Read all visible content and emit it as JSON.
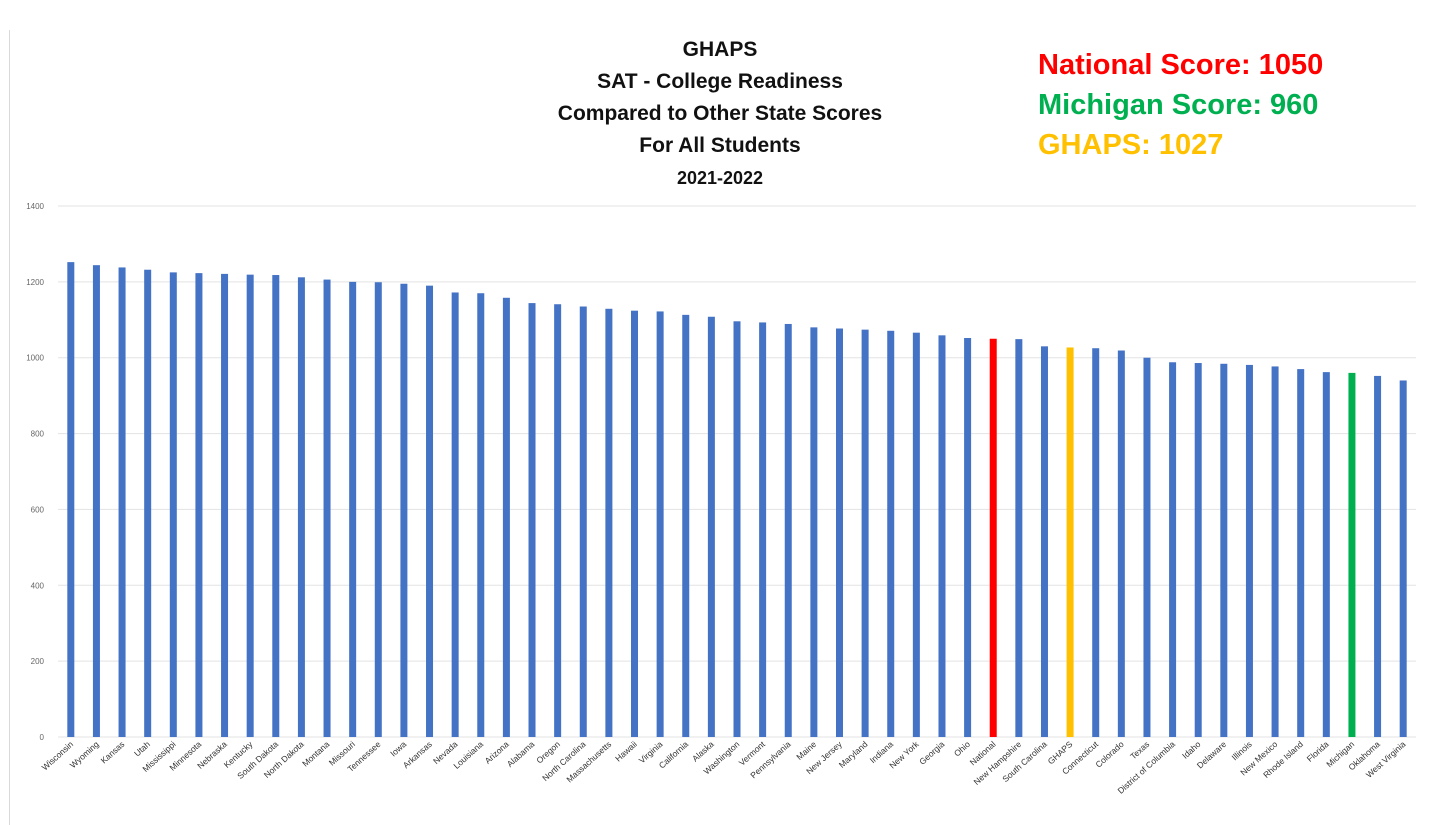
{
  "title_lines": [
    "GHAPS",
    "SAT - College Readiness",
    "Compared to Other State Scores",
    "For All Students",
    "2021-2022"
  ],
  "callouts": {
    "national": "National Score: 1050",
    "michigan": "Michigan Score: 960",
    "ghaps": "GHAPS: 1027"
  },
  "colors": {
    "default_bar": "#4472c4",
    "national": "#ff0000",
    "michigan": "#00b050",
    "ghaps": "#ffc000",
    "grid": "#e3e3e3"
  },
  "chart_data": {
    "type": "bar",
    "title": "GHAPS SAT - College Readiness Compared to Other State Scores For All Students 2021-2022",
    "xlabel": "",
    "ylabel": "",
    "ylim": [
      0,
      1400
    ],
    "yticks": [
      0,
      200,
      400,
      600,
      800,
      1000,
      1200,
      1400
    ],
    "grid": true,
    "categories": [
      "Wisconsin",
      "Wyoming",
      "Kansas",
      "Utah",
      "Mississippi",
      "Minnesota",
      "Nebraska",
      "Kentucky",
      "South Dakota",
      "North Dakota",
      "Montana",
      "Missouri",
      "Tennessee",
      "Iowa",
      "Arkansas",
      "Nevada",
      "Louisiana",
      "Arizona",
      "Alabama",
      "Oregon",
      "North Carolina",
      "Massachusetts",
      "Hawaii",
      "Virginia",
      "California",
      "Alaska",
      "Washington",
      "Vermont",
      "Pennsylvania",
      "Maine",
      "New Jersey",
      "Maryland",
      "Indiana",
      "New York",
      "Georgia",
      "Ohio",
      "National",
      "New Hampshire",
      "South Carolina",
      "GHAPS",
      "Connecticut",
      "Colorado",
      "Texas",
      "District of Columbia",
      "Idaho",
      "Delaware",
      "Illinois",
      "New Mexico",
      "Rhode Island",
      "Florida",
      "Michigan",
      "Oklahoma",
      "West Virginia"
    ],
    "values": [
      1252,
      1244,
      1238,
      1232,
      1225,
      1223,
      1221,
      1219,
      1218,
      1212,
      1206,
      1200,
      1199,
      1195,
      1190,
      1172,
      1170,
      1158,
      1144,
      1141,
      1135,
      1129,
      1124,
      1122,
      1113,
      1108,
      1096,
      1093,
      1089,
      1080,
      1077,
      1074,
      1071,
      1066,
      1059,
      1052,
      1050,
      1049,
      1030,
      1027,
      1025,
      1019,
      1000,
      988,
      986,
      984,
      981,
      977,
      970,
      962,
      960,
      952,
      940
    ],
    "highlights": {
      "National": "national",
      "GHAPS": "ghaps",
      "Michigan": "michigan"
    }
  }
}
